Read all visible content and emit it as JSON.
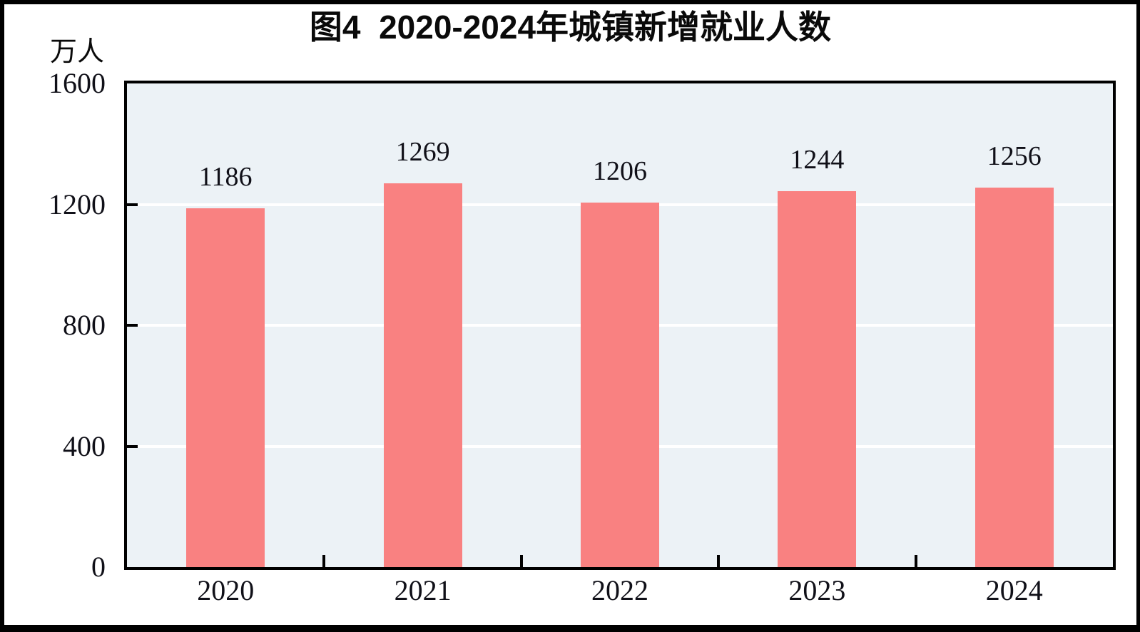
{
  "figure": {
    "title": "图4  2020-2024年城镇新增就业人数",
    "unit_label": "万人"
  },
  "chart_data": {
    "type": "bar",
    "title": "图4 2020-2024年城镇新增就业人数",
    "categories": [
      "2020",
      "2021",
      "2022",
      "2023",
      "2024"
    ],
    "values": [
      1186,
      1269,
      1206,
      1244,
      1256
    ],
    "data_labels": [
      "1186",
      "1269",
      "1206",
      "1244",
      "1256"
    ],
    "xlabel": "",
    "ylabel": "万人",
    "ylim": [
      0,
      1600
    ],
    "yticks": [
      0,
      400,
      800,
      1200,
      1600
    ],
    "gridlines_at": [
      400,
      800,
      1200
    ],
    "grid": true,
    "legend_position": "none",
    "colors": {
      "bar": "#f98181",
      "plot_background": "#ecf2f6",
      "gridline": "#ffffff",
      "axis": "#000000",
      "text": "#101018"
    }
  }
}
